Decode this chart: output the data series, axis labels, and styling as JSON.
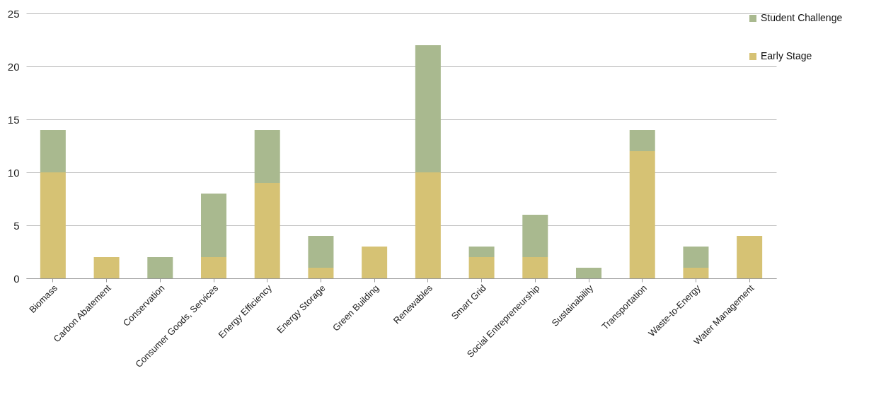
{
  "chart_data": {
    "type": "bar",
    "stacked": true,
    "categories": [
      "Biomass",
      "Carbon Abatement",
      "Conservation",
      "Consumer Goods, Services",
      "Energy Efficiency",
      "Energy Storage",
      "Green Building",
      "Renewables",
      "Smart Grid",
      "Social Entrepreneurship",
      "Sustainability",
      "Transportation",
      "Waste-to-Energy",
      "Water Management"
    ],
    "series": [
      {
        "name": "Early Stage",
        "color": "#d6c274",
        "values": [
          10,
          2,
          0,
          2,
          9,
          1,
          3,
          10,
          2,
          2,
          0,
          12,
          1,
          4
        ]
      },
      {
        "name": "Student Challenge",
        "color": "#a9b98f",
        "values": [
          4,
          0,
          2,
          6,
          5,
          3,
          0,
          12,
          1,
          4,
          1,
          2,
          2,
          0
        ]
      }
    ],
    "ylim": [
      0,
      25
    ],
    "yticks": [
      0,
      5,
      10,
      15,
      20,
      25
    ],
    "grid": "y",
    "legend": "right"
  }
}
